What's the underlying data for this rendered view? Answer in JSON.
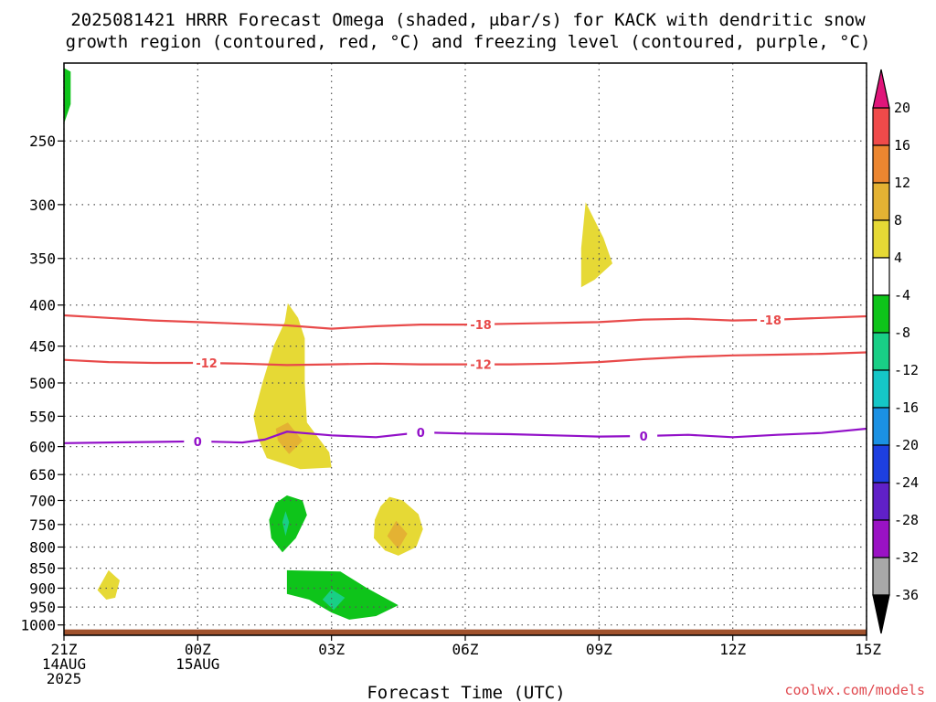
{
  "chart_data": {
    "type": "heatmap",
    "title_line1": "2025081421 HRRR Forecast Omega (shaded, μbar/s) for KACK with dendritic snow",
    "title_line2": "growth region (contoured, red, °C) and freezing level (contoured, purple, °C)",
    "xlabel": "Forecast Time (UTC)",
    "credit": "coolwx.com/models",
    "x_range_hours": [
      0,
      18
    ],
    "y_range_hpa": [
      200,
      1030
    ],
    "y_ticks": [
      250,
      300,
      350,
      400,
      450,
      500,
      550,
      600,
      650,
      700,
      750,
      800,
      850,
      900,
      950,
      1000
    ],
    "x_ticks": [
      {
        "hour": 0,
        "label1": "21Z",
        "label2": "14AUG",
        "label3": "2025"
      },
      {
        "hour": 3,
        "label1": "00Z",
        "label2": "15AUG",
        "label3": ""
      },
      {
        "hour": 6,
        "label1": "03Z",
        "label2": "",
        "label3": ""
      },
      {
        "hour": 9,
        "label1": "06Z",
        "label2": "",
        "label3": ""
      },
      {
        "hour": 12,
        "label1": "09Z",
        "label2": "",
        "label3": ""
      },
      {
        "hour": 15,
        "label1": "12Z",
        "label2": "",
        "label3": ""
      },
      {
        "hour": 18,
        "label1": "15Z",
        "label2": "",
        "label3": ""
      }
    ],
    "grid": true,
    "colorbar": {
      "placement": "right",
      "labels": [
        "20",
        "16",
        "12",
        "8",
        "4",
        "-4",
        "-8",
        "-12",
        "-16",
        "-20",
        "-24",
        "-28",
        "-32",
        "-36"
      ],
      "top_arrow_color": "#e0157a",
      "bottom_arrow_color": "#000000",
      "bands": [
        {
          "color": "#f04a4a",
          "from": 16,
          "to": 20
        },
        {
          "color": "#ec8630",
          "from": 12,
          "to": 16
        },
        {
          "color": "#e4b233",
          "from": 8,
          "to": 12
        },
        {
          "color": "#e6d935",
          "from": 4,
          "to": 8
        },
        {
          "color": "#ffffff",
          "from": -4,
          "to": 4
        },
        {
          "color": "#0ec41a",
          "from": -8,
          "to": -4
        },
        {
          "color": "#19cf86",
          "from": -12,
          "to": -8
        },
        {
          "color": "#15c7c7",
          "from": -16,
          "to": -12
        },
        {
          "color": "#1b91e3",
          "from": -20,
          "to": -16
        },
        {
          "color": "#1d3fe0",
          "from": -24,
          "to": -20
        },
        {
          "color": "#6020c8",
          "from": -28,
          "to": -24
        },
        {
          "color": "#9a12c4",
          "from": -32,
          "to": -28
        },
        {
          "color": "#a8a8a8",
          "from": -36,
          "to": -32
        }
      ]
    },
    "omega_regions": [
      {
        "value": -6,
        "color": "#0ec41a",
        "points": [
          [
            -0.2,
            200
          ],
          [
            0.15,
            205
          ],
          [
            0.15,
            225
          ],
          [
            0.0,
            238
          ],
          [
            -0.15,
            222
          ]
        ]
      },
      {
        "value": 6,
        "color": "#e6d935",
        "points": [
          [
            5.02,
            398
          ],
          [
            5.25,
            415
          ],
          [
            5.4,
            440
          ],
          [
            5.4,
            500
          ],
          [
            5.45,
            560
          ],
          [
            5.95,
            610
          ],
          [
            6.0,
            637
          ],
          [
            5.3,
            640
          ],
          [
            4.55,
            620
          ],
          [
            4.35,
            585
          ],
          [
            4.25,
            550
          ],
          [
            4.45,
            500
          ],
          [
            4.7,
            450
          ],
          [
            4.95,
            420
          ]
        ]
      },
      {
        "value": 10,
        "color": "#e4b233",
        "points": [
          [
            5.02,
            560
          ],
          [
            5.35,
            590
          ],
          [
            5.05,
            613
          ],
          [
            4.8,
            590
          ],
          [
            4.75,
            570
          ]
        ]
      },
      {
        "value": 6,
        "color": "#e6d935",
        "points": [
          [
            11.7,
            298
          ],
          [
            12.1,
            330
          ],
          [
            12.3,
            355
          ],
          [
            11.9,
            372
          ],
          [
            11.6,
            380
          ],
          [
            11.6,
            340
          ]
        ]
      },
      {
        "value": 6,
        "color": "#e6d935",
        "points": [
          [
            7.3,
            693
          ],
          [
            7.6,
            700
          ],
          [
            7.95,
            728
          ],
          [
            8.05,
            760
          ],
          [
            7.9,
            800
          ],
          [
            7.5,
            820
          ],
          [
            7.2,
            808
          ],
          [
            6.95,
            780
          ],
          [
            6.97,
            740
          ],
          [
            7.1,
            712
          ]
        ]
      },
      {
        "value": 10,
        "color": "#e4b233",
        "points": [
          [
            7.45,
            742
          ],
          [
            7.7,
            770
          ],
          [
            7.5,
            805
          ],
          [
            7.25,
            775
          ]
        ]
      },
      {
        "value": -6,
        "color": "#0ec41a",
        "points": [
          [
            5.0,
            690
          ],
          [
            5.35,
            700
          ],
          [
            5.45,
            730
          ],
          [
            5.2,
            780
          ],
          [
            4.9,
            812
          ],
          [
            4.65,
            780
          ],
          [
            4.6,
            740
          ],
          [
            4.75,
            705
          ]
        ]
      },
      {
        "value": -10,
        "color": "#19cf86",
        "points": [
          [
            4.97,
            722
          ],
          [
            5.05,
            745
          ],
          [
            4.97,
            775
          ],
          [
            4.9,
            745
          ]
        ]
      },
      {
        "value": 6,
        "color": "#e6d935",
        "points": [
          [
            1.0,
            855
          ],
          [
            1.25,
            880
          ],
          [
            1.15,
            925
          ],
          [
            0.95,
            930
          ],
          [
            0.75,
            905
          ]
        ]
      },
      {
        "value": -6,
        "color": "#0ec41a",
        "points": [
          [
            5.0,
            855
          ],
          [
            6.2,
            858
          ],
          [
            6.8,
            900
          ],
          [
            7.5,
            945
          ],
          [
            7.0,
            975
          ],
          [
            6.4,
            985
          ],
          [
            6.0,
            965
          ],
          [
            5.5,
            930
          ],
          [
            5.0,
            915
          ]
        ]
      },
      {
        "value": -10,
        "color": "#19cf86",
        "points": [
          [
            6.0,
            903
          ],
          [
            6.3,
            925
          ],
          [
            6.05,
            958
          ],
          [
            5.8,
            930
          ]
        ]
      }
    ],
    "temperature_contours": [
      {
        "label": "-18",
        "color": "#e84a4a",
        "label_positions": [
          [
            9.35,
            424
          ],
          [
            15.85,
            418
          ]
        ],
        "points": [
          [
            0,
            412
          ],
          [
            1,
            415
          ],
          [
            2,
            418
          ],
          [
            3,
            420
          ],
          [
            4,
            422
          ],
          [
            5,
            424
          ],
          [
            6,
            428
          ],
          [
            7,
            425
          ],
          [
            8,
            423
          ],
          [
            9,
            423
          ],
          [
            10,
            422
          ],
          [
            11,
            421
          ],
          [
            12,
            420
          ],
          [
            13,
            417
          ],
          [
            14,
            416
          ],
          [
            15,
            418
          ],
          [
            16,
            417
          ],
          [
            17,
            415
          ],
          [
            18,
            413
          ]
        ]
      },
      {
        "label": "-12",
        "color": "#e84a4a",
        "label_positions": [
          [
            3.2,
            473
          ],
          [
            9.35,
            475
          ]
        ],
        "points": [
          [
            0,
            468
          ],
          [
            1,
            471
          ],
          [
            2,
            472
          ],
          [
            3,
            472
          ],
          [
            4,
            473
          ],
          [
            5,
            475
          ],
          [
            6,
            474
          ],
          [
            7,
            473
          ],
          [
            8,
            474
          ],
          [
            9,
            474
          ],
          [
            10,
            474
          ],
          [
            11,
            473
          ],
          [
            12,
            471
          ],
          [
            13,
            467
          ],
          [
            14,
            464
          ],
          [
            15,
            462
          ],
          [
            16,
            461
          ],
          [
            17,
            460
          ],
          [
            18,
            458
          ]
        ]
      },
      {
        "label": "0",
        "color": "#9210c8",
        "label_positions": [
          [
            3.0,
            592
          ],
          [
            8.0,
            576
          ],
          [
            13.0,
            587
          ]
        ],
        "points": [
          [
            0,
            594
          ],
          [
            1,
            593
          ],
          [
            2,
            592
          ],
          [
            3,
            591
          ],
          [
            4,
            593
          ],
          [
            4.5,
            588
          ],
          [
            5,
            575
          ],
          [
            6,
            581
          ],
          [
            7,
            584
          ],
          [
            8,
            576
          ],
          [
            9,
            578
          ],
          [
            10,
            579
          ],
          [
            11,
            581
          ],
          [
            12,
            583
          ],
          [
            13,
            582
          ],
          [
            14,
            580
          ],
          [
            15,
            584
          ],
          [
            16,
            580
          ],
          [
            17,
            577
          ],
          [
            18,
            570
          ]
        ]
      }
    ],
    "ground": {
      "color": "#a0522d",
      "from_hpa": 1013,
      "to_hpa": 1030
    }
  }
}
